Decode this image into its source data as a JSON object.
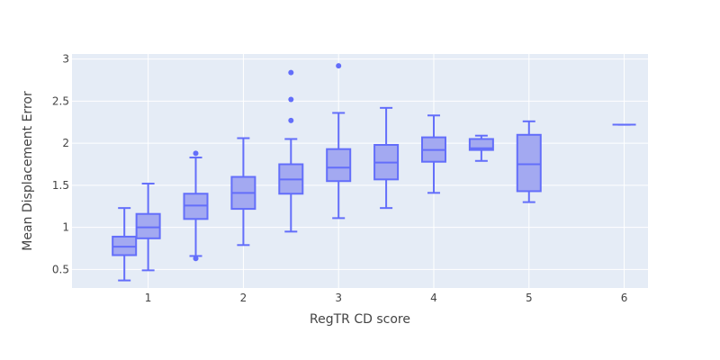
{
  "chart_data": {
    "type": "box",
    "title": "",
    "xlabel": "RegTR CD score",
    "ylabel": "Mean Displacement Error",
    "xlim": [
      0.2,
      6.25
    ],
    "ylim": [
      0.28,
      3.06
    ],
    "x_ticks": [
      "1",
      "2",
      "3",
      "4",
      "5",
      "6"
    ],
    "y_ticks": [
      "0.5",
      "1",
      "1.5",
      "2",
      "2.5",
      "3"
    ],
    "grid": true,
    "colors": {
      "plot_bg": "#e5ecf6",
      "grid": "#ffffff",
      "box_line": "#636efa",
      "box_fill": "#a3a9f1",
      "text": "#444444"
    },
    "boxes": [
      {
        "x": 0.75,
        "min": 0.37,
        "q1": 0.67,
        "median": 0.77,
        "q3": 0.89,
        "max": 1.23,
        "outliers": []
      },
      {
        "x": 1.0,
        "min": 0.49,
        "q1": 0.87,
        "median": 1.0,
        "q3": 1.16,
        "max": 1.52,
        "outliers": []
      },
      {
        "x": 1.5,
        "min": 0.66,
        "q1": 1.1,
        "median": 1.26,
        "q3": 1.4,
        "max": 1.83,
        "outliers": [
          0.63,
          1.88
        ]
      },
      {
        "x": 2.0,
        "min": 0.79,
        "q1": 1.22,
        "median": 1.41,
        "q3": 1.6,
        "max": 2.06,
        "outliers": []
      },
      {
        "x": 2.5,
        "min": 0.95,
        "q1": 1.4,
        "median": 1.57,
        "q3": 1.75,
        "max": 2.05,
        "outliers": [
          2.27,
          2.52,
          2.84
        ]
      },
      {
        "x": 3.0,
        "min": 1.11,
        "q1": 1.55,
        "median": 1.71,
        "q3": 1.93,
        "max": 2.36,
        "outliers": [
          2.92
        ]
      },
      {
        "x": 3.5,
        "min": 1.23,
        "q1": 1.57,
        "median": 1.77,
        "q3": 1.98,
        "max": 2.42,
        "outliers": []
      },
      {
        "x": 4.0,
        "min": 1.41,
        "q1": 1.78,
        "median": 1.92,
        "q3": 2.07,
        "max": 2.33,
        "outliers": []
      },
      {
        "x": 4.5,
        "min": 1.79,
        "q1": 1.92,
        "median": 1.94,
        "q3": 2.05,
        "max": 2.09,
        "outliers": []
      },
      {
        "x": 5.0,
        "min": 1.3,
        "q1": 1.43,
        "median": 1.75,
        "q3": 2.1,
        "max": 2.26,
        "outliers": []
      },
      {
        "x": 6.0,
        "min": 2.22,
        "q1": 2.22,
        "median": 2.22,
        "q3": 2.22,
        "max": 2.22,
        "outliers": []
      }
    ]
  }
}
